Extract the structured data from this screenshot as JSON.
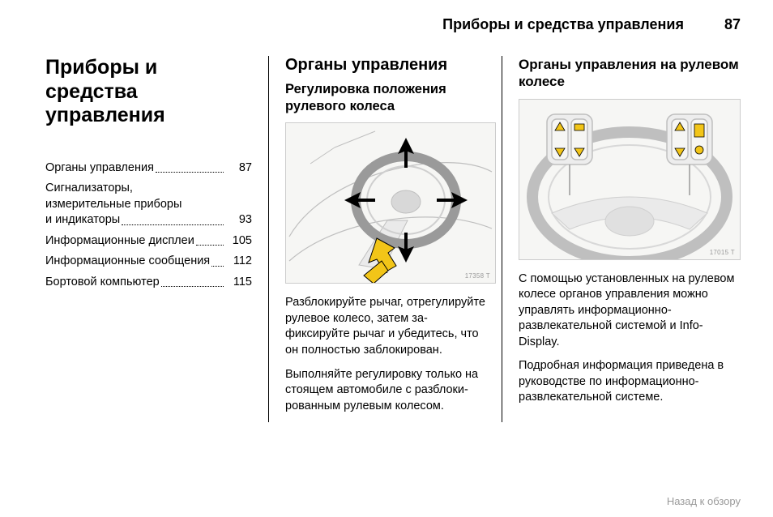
{
  "header": {
    "section_name": "Приборы и средства управления",
    "page_number": "87"
  },
  "col1": {
    "chapter_title": "Приборы и средства управления",
    "toc": [
      {
        "text": "Органы управления",
        "page": "87",
        "lines": 1
      },
      {
        "text": "Сигнализаторы, измерительные приборы и индикаторы",
        "page": "93",
        "lines": 3
      },
      {
        "text": "Информационные дисплеи",
        "page": "105",
        "lines": 1
      },
      {
        "text": "Информационные сообщения",
        "page": "112",
        "lines": 1
      },
      {
        "text": "Бортовой компьютер",
        "page": "115",
        "lines": 1
      }
    ]
  },
  "col2": {
    "heading": "Органы управления",
    "subheading": "Регулировка положения рулевого колеса",
    "illus_code": "17358 T",
    "p1": "Разблокируйте рычаг, отрегули­руйте рулевое колесо, затем за­фиксируйте рычаг и убедитесь, что он полностью заблокирован.",
    "p2": "Выполняйте регулировку только на стоящем автомобиле с разблоки­рованным рулевым колесом."
  },
  "col3": {
    "subheading": "Органы управления на рулевом колесе",
    "illus_code": "17015 T",
    "p1": "С помощью установленных на ру­левом колесе органов управления можно управлять информационно-развлекательной системой и Info-Display.",
    "p2": "Подробная информация приве­дена в руководстве по информа­ционно-развлекательной системе."
  },
  "footer": {
    "back_link": "Назад к обзору"
  },
  "style": {
    "arrow_fill": "#f2c518",
    "arrow_stroke": "#000000",
    "line_gray": "#bfbfbf",
    "panel_bg": "#f6f6f4"
  }
}
